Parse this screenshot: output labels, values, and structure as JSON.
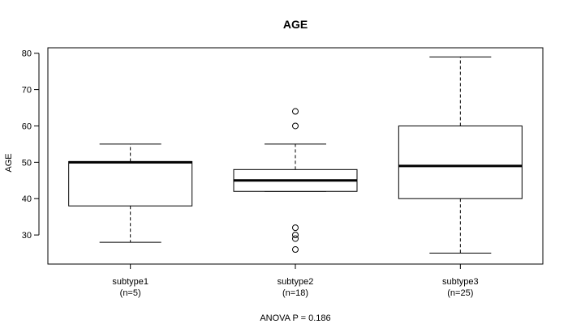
{
  "chart_data": {
    "type": "boxplot",
    "title": "AGE",
    "ylabel": "AGE",
    "xlabel": "ANOVA P = 0.186",
    "ylim": [
      22,
      81.5
    ],
    "yticks": [
      30,
      40,
      50,
      60,
      70,
      80
    ],
    "groups": [
      {
        "name": "subtype1",
        "n_label": "(n=5)",
        "whisker_low": 28,
        "q1": 38,
        "median": 50,
        "q3": 50.2,
        "whisker_high": 55,
        "outliers": []
      },
      {
        "name": "subtype2",
        "n_label": "(n=18)",
        "whisker_low": 42,
        "q1": 42,
        "median": 45,
        "q3": 48,
        "whisker_high": 55,
        "outliers": [
          26,
          29,
          30,
          32,
          60,
          64
        ]
      },
      {
        "name": "subtype3",
        "n_label": "(n=25)",
        "whisker_low": 25,
        "q1": 40,
        "median": 49,
        "q3": 60,
        "whisker_high": 79,
        "outliers": []
      }
    ]
  }
}
